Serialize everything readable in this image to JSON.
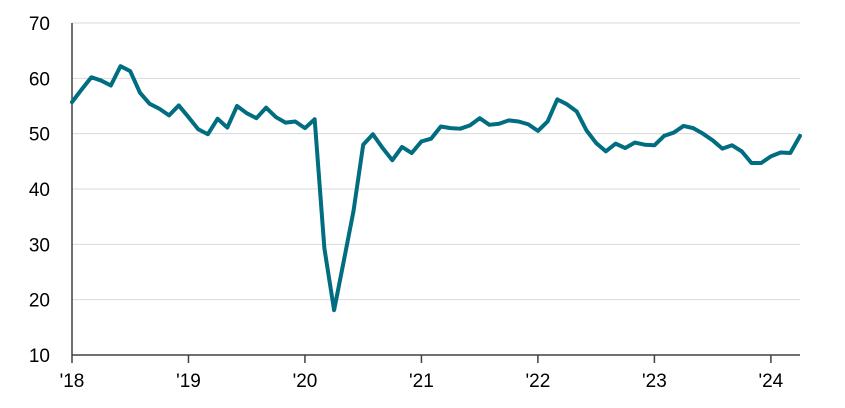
{
  "chart_data": {
    "type": "line",
    "title": "",
    "xlabel": "",
    "ylabel": "",
    "ylim": [
      10,
      70
    ],
    "yticks": [
      10,
      20,
      30,
      40,
      50,
      60,
      70
    ],
    "xtick_labels": [
      "'18",
      "'19",
      "'20",
      "'21",
      "'22",
      "'23",
      "'24"
    ],
    "grid": true,
    "legend": "none",
    "line_color": "#006d80",
    "series": [
      {
        "values": [
          55.7,
          58.0,
          60.2,
          59.6,
          58.7,
          62.2,
          61.3,
          57.4,
          55.4,
          54.5,
          53.3,
          55.1,
          53.0,
          50.8,
          49.9,
          52.7,
          51.1,
          55.0,
          53.7,
          52.8,
          54.7,
          53.0,
          52.0,
          52.2,
          51.0,
          52.6,
          29.3,
          18.1,
          27.0,
          36.0,
          48.0,
          49.9,
          47.4,
          45.2,
          47.6,
          46.5,
          48.6,
          49.1,
          51.3,
          51.0,
          50.9,
          51.5,
          52.8,
          51.6,
          51.8,
          52.4,
          52.2,
          51.7,
          50.5,
          52.2,
          56.2,
          55.3,
          54.0,
          50.6,
          48.3,
          46.8,
          48.2,
          47.4,
          48.4,
          48.0,
          47.9,
          49.6,
          50.2,
          51.4,
          51.0,
          50.0,
          48.8,
          47.3,
          47.9,
          46.8,
          44.7,
          44.7,
          45.9,
          46.6,
          46.5,
          49.6
        ]
      }
    ]
  }
}
